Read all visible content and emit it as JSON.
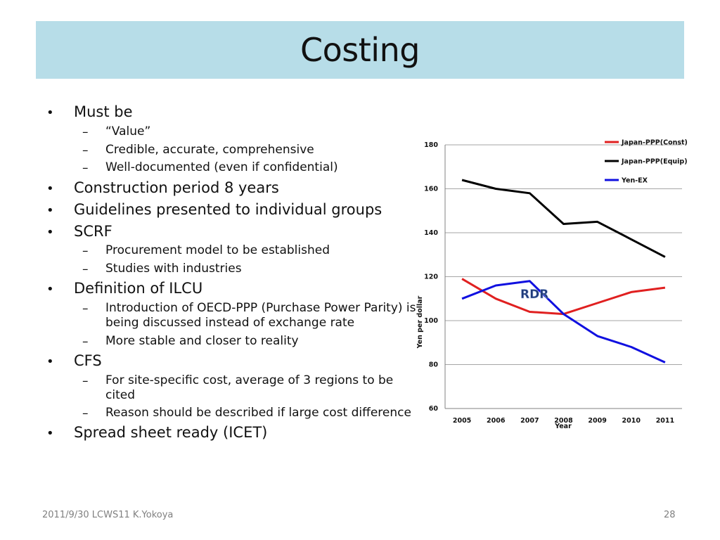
{
  "title": "Costing",
  "bullets": [
    {
      "text": "Must be",
      "sub": [
        "“Value”",
        "Credible, accurate, comprehensive",
        "Well-documented (even if confidential)"
      ]
    },
    {
      "text": "Construction period 8 years",
      "sub": []
    },
    {
      "text": "Guidelines presented to individual groups",
      "sub": []
    },
    {
      "text": "SCRF",
      "sub": [
        "Procurement model to be established",
        "Studies with industries"
      ]
    },
    {
      "text": "Definition of ILCU",
      "sub": [
        "Introduction of OECD-PPP (Purchase Power Parity) is being discussed instead of exchange rate",
        "More stable and closer to reality"
      ]
    },
    {
      "text": "CFS",
      "sub": [
        "For site-specific cost, average of 3 regions to be cited",
        "Reason should be described if large cost difference"
      ]
    },
    {
      "text": "Spread sheet ready (ICET)",
      "sub": []
    }
  ],
  "footer": {
    "left": "2011/9/30 LCWS11 K.Yokoya",
    "page": "28"
  },
  "chart_data": {
    "type": "line",
    "title": "",
    "xlabel": "Year",
    "ylabel": "Yen per dollar",
    "x": [
      "2005",
      "2006",
      "2007",
      "2008",
      "2009",
      "2010",
      "2011"
    ],
    "ylim": [
      60,
      180
    ],
    "yticks": [
      60,
      80,
      100,
      120,
      140,
      160,
      180
    ],
    "grid": true,
    "legend_position": "top-right",
    "annotation": "RDR",
    "series": [
      {
        "name": "Japan-PPP(Const)",
        "color": "#e02020",
        "values": [
          119,
          110,
          104,
          103,
          108,
          113,
          115
        ]
      },
      {
        "name": "Japan-PPP(Equip)",
        "color": "#000000",
        "values": [
          164,
          160,
          158,
          144,
          145,
          137,
          129
        ]
      },
      {
        "name": "Yen-EX",
        "color": "#1010e0",
        "values": [
          110,
          116,
          118,
          103,
          93,
          88,
          81
        ]
      }
    ]
  }
}
